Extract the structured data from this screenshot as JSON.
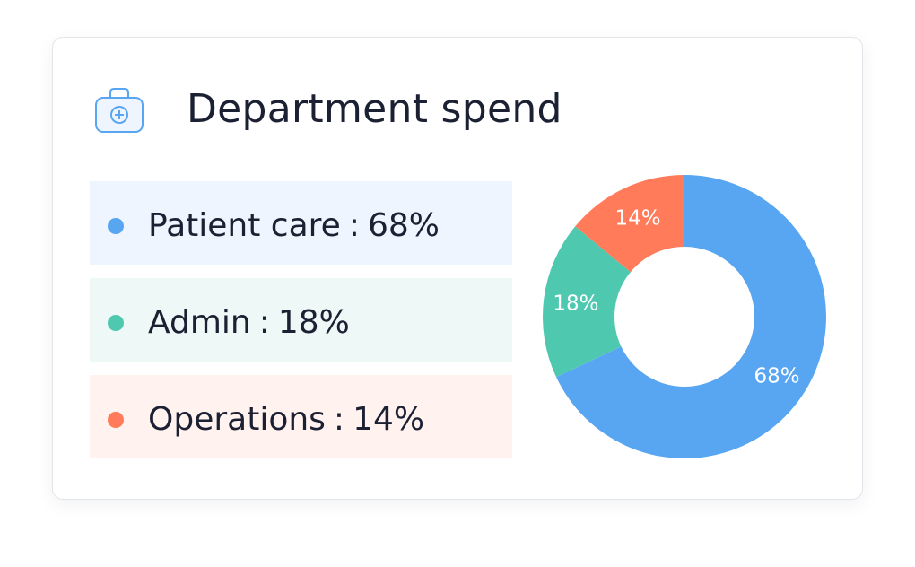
{
  "card": {
    "title": "Department spend",
    "icon": "medical-kit-icon",
    "icon_color": "#58a6f2"
  },
  "legend": [
    {
      "label": "Patient care",
      "value_text": "68%",
      "color": "#58a6f2",
      "bg": "#eef5fe"
    },
    {
      "label": "Admin",
      "value_text": "18%",
      "color": "#4ec9b0",
      "bg": "#eef8f6"
    },
    {
      "label": "Operations",
      "value_text": "14%",
      "color": "#ff7b5a",
      "bg": "#fff2ef"
    }
  ],
  "chart_data": {
    "type": "pie",
    "donut": true,
    "title": "Department spend",
    "categories": [
      "Patient care",
      "Admin",
      "Operations"
    ],
    "values": [
      68,
      18,
      14
    ],
    "labels": [
      "68%",
      "18%",
      "14%"
    ],
    "colors": [
      "#58a6f2",
      "#4ec9b0",
      "#ff7b5a"
    ],
    "legend": "left"
  }
}
